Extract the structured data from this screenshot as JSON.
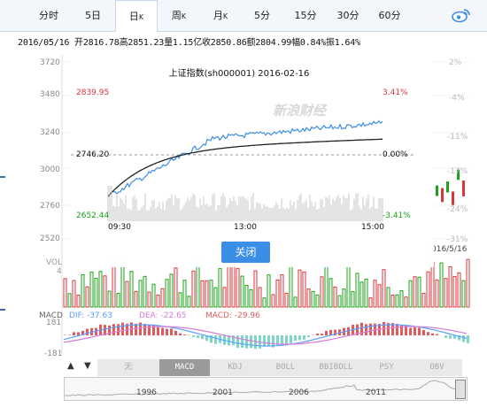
{
  "tabs": {
    "items": [
      {
        "label": "分时",
        "sup": ""
      },
      {
        "label": "5日",
        "sup": ""
      },
      {
        "label": "日",
        "sup": "K"
      },
      {
        "label": "周",
        "sup": "K"
      },
      {
        "label": "月",
        "sup": "K"
      },
      {
        "label": "5分",
        "sup": ""
      },
      {
        "label": "15分",
        "sup": ""
      },
      {
        "label": "30分",
        "sup": ""
      },
      {
        "label": "60分",
        "sup": ""
      }
    ],
    "active_index": 2,
    "weibo_icon": "weibo-icon"
  },
  "info": {
    "text": "2016/05/16 开2816.78高2851.23量1.15亿收2850.86额2804.99幅0.84%振1.64%"
  },
  "main_chart": {
    "y_left_ticks": [
      "3720",
      "3480",
      "3240",
      "3000",
      "2760",
      "2520"
    ],
    "y_right_ticks": [
      "2%",
      "-4%",
      "-11%",
      "-17%",
      "-24%",
      "-31%"
    ],
    "right_date": "016/5/16"
  },
  "popup": {
    "title": "上证指数(sh000001) 2016-02-16",
    "high": "2839.95",
    "high_pct": "3.41%",
    "base": "2746.20",
    "base_pct": "0.00%",
    "low": "2652.44",
    "low_pct": "-3.41%",
    "time_start": "09:30",
    "time_mid": "13:00",
    "time_end": "15:00",
    "close_button": "关闭",
    "watermark": "新浪财经",
    "colors": {
      "up": "#d9363e",
      "down": "#1aa31a",
      "price_line": "#3a8ee6",
      "avg_line": "#222222"
    }
  },
  "volume": {
    "label": "VOL",
    "tick": "4"
  },
  "macd": {
    "label": "MACD",
    "dif": "DIF: -37.63",
    "dea": "DEA: -22.65",
    "macd": "MACD: -29.96",
    "y_top": "181",
    "y_bottom": "-181",
    "colors": {
      "dif": "#5aa0ff",
      "dea": "#d87ad8",
      "macd": "#e05c5c"
    }
  },
  "indicator_tabs": {
    "items": [
      "无",
      "MACD",
      "KDJ",
      "BOLL",
      "BBIBOLL",
      "PSY",
      "OBV"
    ],
    "active_index": 1
  },
  "overview": {
    "years": [
      "1996",
      "2001",
      "2006",
      "2011"
    ]
  }
}
